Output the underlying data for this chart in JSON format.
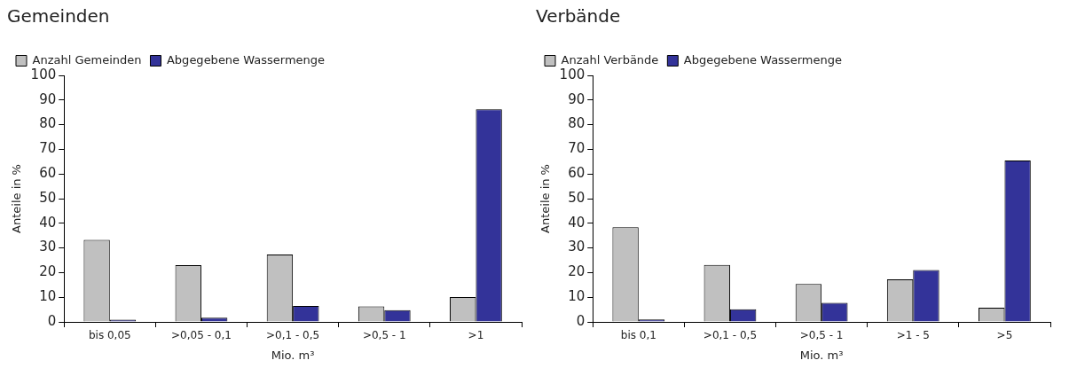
{
  "chart_data": [
    {
      "type": "bar",
      "title": "Gemeinden",
      "xlabel": "Mio. m³",
      "ylabel": "Anteile in %",
      "categories": [
        "bis 0,05",
        ">0,05 - 0,1",
        ">0,1 - 0,5",
        ">0,5 - 1",
        ">1"
      ],
      "series": [
        {
          "name": "Anzahl Gemeinden",
          "color": "#c0c0c0",
          "values": [
            33.3,
            23,
            27.3,
            6.3,
            10.1
          ]
        },
        {
          "name": "Abgegebene Wassermenge",
          "color": "#333399",
          "values": [
            0.9,
            1.7,
            6.5,
            4.8,
            86.2
          ]
        }
      ],
      "ylim": [
        0,
        100
      ],
      "yticks": [
        0,
        10,
        20,
        30,
        40,
        50,
        60,
        70,
        80,
        90,
        100
      ],
      "legend": "top left",
      "grid": false
    },
    {
      "type": "bar",
      "title": "Verbände",
      "xlabel": "Mio. m³",
      "ylabel": "Anteile in %",
      "categories": [
        "bis 0,1",
        ">0,1 - 0,5",
        ">0,5 - 1",
        ">1 - 5",
        ">5"
      ],
      "series": [
        {
          "name": "Anzahl Verbände",
          "color": "#c0c0c0",
          "values": [
            38.4,
            23.1,
            15.4,
            17.3,
            5.8
          ]
        },
        {
          "name": "Abgegebene Wassermenge",
          "color": "#333399",
          "values": [
            1,
            5.1,
            7.7,
            21,
            65.5
          ]
        }
      ],
      "ylim": [
        0,
        100
      ],
      "yticks": [
        0,
        10,
        20,
        30,
        40,
        50,
        60,
        70,
        80,
        90,
        100
      ],
      "legend": "top left",
      "grid": false
    }
  ]
}
